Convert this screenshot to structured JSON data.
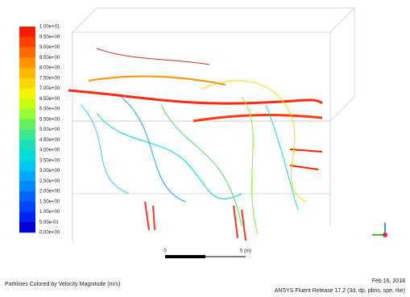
{
  "colorbar": {
    "labels": [
      "1.00e+01",
      "9.50e+00",
      "9.00e+00",
      "8.50e+00",
      "8.00e+00",
      "7.50e+00",
      "7.00e+00",
      "6.50e+00",
      "6.00e+00",
      "5.50e+00",
      "5.00e+00",
      "4.50e+00",
      "4.00e+00",
      "3.50e+00",
      "3.00e+00",
      "2.50e+00",
      "2.00e+00",
      "1.50e+00",
      "1.00e+00",
      "5.00e-01",
      "0.00e+00"
    ],
    "band_colors": [
      "#ff1a00",
      "#ff4000",
      "#ff6a00",
      "#ff9400",
      "#ffb800",
      "#ffd800",
      "#f4f400",
      "#c8ff10",
      "#96ff30",
      "#66f060",
      "#3ee890",
      "#18e0b8",
      "#00dcd8",
      "#00c8f0",
      "#00a8ff",
      "#0088ff",
      "#0066ff",
      "#0044ff",
      "#0022f0",
      "#0000d8"
    ]
  },
  "scale_bar": {
    "start": "0",
    "end": "5 (m)"
  },
  "footer": {
    "caption": "Pathlines Colored by Velocity Magnitude (m/s)",
    "date": "Feb 16, 2018",
    "release": "ANSYS Fluent Release 17.2 (3d, dp, pbns, spe, rke)"
  }
}
